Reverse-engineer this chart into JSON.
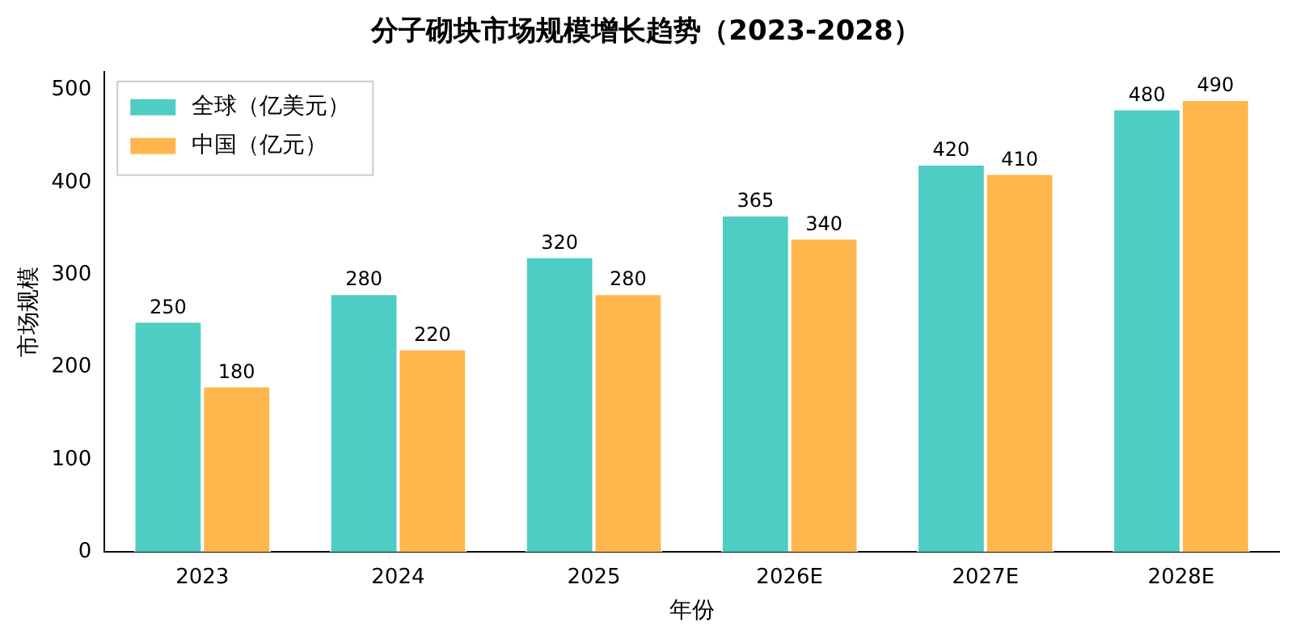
{
  "chart_data": {
    "type": "bar",
    "title": "分子砌块市场规模增长趋势（2023-2028）",
    "xlabel": "年份",
    "ylabel": "市场规模",
    "categories": [
      "2023",
      "2024",
      "2025",
      "2026E",
      "2027E",
      "2028E"
    ],
    "series": [
      {
        "name": "全球（亿美元）",
        "color": "#4ecdc4",
        "values": [
          250,
          280,
          320,
          365,
          420,
          480
        ]
      },
      {
        "name": "中国（亿元）",
        "color": "#ffb74d",
        "values": [
          180,
          220,
          280,
          340,
          410,
          490
        ]
      }
    ],
    "ylim": [
      0,
      520
    ],
    "yticks": [
      0,
      100,
      200,
      300,
      400,
      500
    ],
    "grid": false,
    "legend": "top left",
    "data_labels": true
  }
}
